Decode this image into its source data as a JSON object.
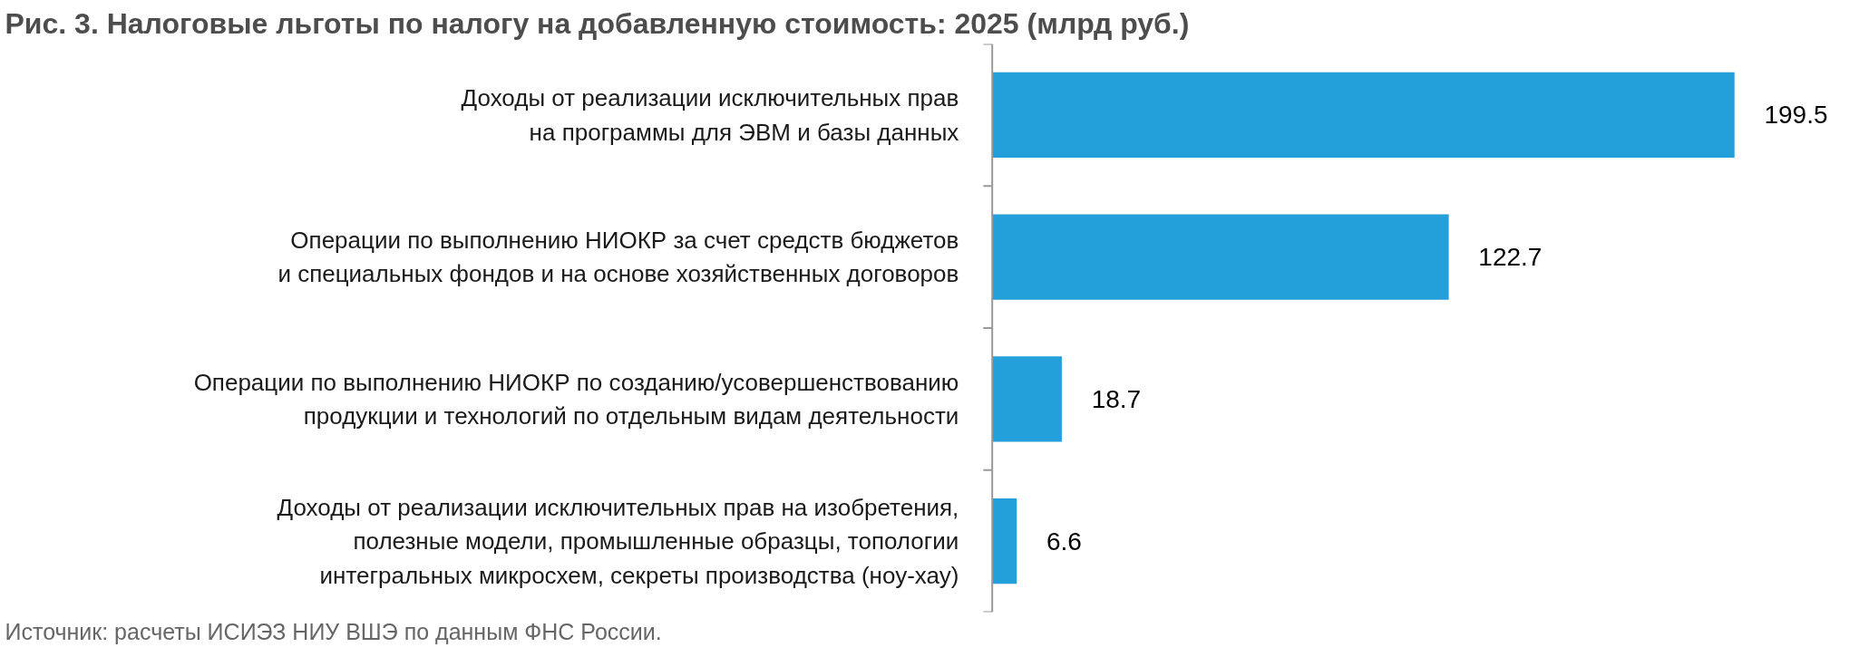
{
  "chart_data": {
    "type": "bar",
    "orientation": "horizontal",
    "title": "Рис. 3. Налоговые льготы по налогу на добавленную стоимость: 2025 (млрд руб.)",
    "categories": [
      "Доходы от реализации исключительных прав\nна программы для ЭВМ и базы данных",
      "Операции по выполнению НИОКР за счет средств бюджетов\nи специальных фондов и на основе хозяйственных договоров",
      "Операции по выполнению НИОКР по созданию/усовершенствованию\nпродукции и технологий по отдельным видам деятельности",
      "Доходы от реализации исключительных прав на изобретения,\nполезные модели, промышленные образцы, топологии\nинтегральных микросхем, секреты производства (ноу-хау)"
    ],
    "values": [
      199.5,
      122.7,
      18.7,
      6.6
    ],
    "color": "#239fd9",
    "data_labels": true,
    "annotations": [
      "Источник: расчеты ИСИЭЗ НИУ ВШЭ по данным ФНС России."
    ]
  }
}
